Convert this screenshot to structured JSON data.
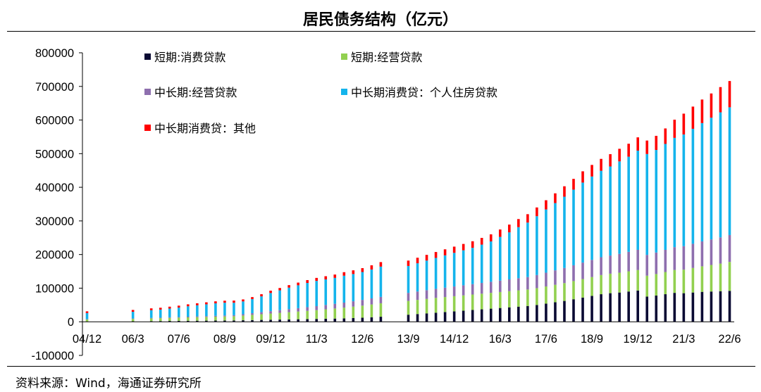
{
  "title": "居民债务结构（亿元）",
  "source": "资料来源：Wind，海通证券研究所",
  "colors": {
    "short_consumer": "#0a0a33",
    "short_business": "#92d050",
    "mid_business": "#8e6fae",
    "mid_housing": "#14b4ec",
    "mid_other": "#ff0000"
  },
  "chart_data": {
    "type": "bar",
    "stacked": true,
    "title": "居民债务结构（亿元）",
    "xlabel": "",
    "ylabel": "",
    "ylim": [
      -100000,
      800000
    ],
    "yticks": [
      -100000,
      0,
      100000,
      200000,
      300000,
      400000,
      500000,
      600000,
      700000,
      800000
    ],
    "ytick_labels": [
      "-100000",
      "0",
      "100000",
      "200000",
      "300000",
      "400000",
      "500000",
      "600000",
      "700000",
      "800000"
    ],
    "xtick_labels": [
      "04/12",
      "06/3",
      "07/6",
      "08/9",
      "09/12",
      "11/3",
      "12/6",
      "13/9",
      "14/12",
      "16/3",
      "17/6",
      "18/9",
      "19/12",
      "21/3",
      "22/6"
    ],
    "legend_position": "top-left",
    "categories": [
      "04/12",
      "05/3",
      "05/6",
      "05/9",
      "05/12",
      "06/3",
      "06/6",
      "06/9",
      "06/12",
      "07/3",
      "07/6",
      "07/9",
      "07/12",
      "08/3",
      "08/6",
      "08/9",
      "08/12",
      "09/3",
      "09/6",
      "09/9",
      "09/12",
      "10/3",
      "10/6",
      "10/9",
      "10/12",
      "11/3",
      "11/6",
      "11/9",
      "11/12",
      "12/3",
      "12/6",
      "12/9",
      "12/12",
      "13/3",
      "13/6",
      "13/9",
      "13/12",
      "14/3",
      "14/6",
      "14/9",
      "14/12",
      "15/3",
      "15/6",
      "15/9",
      "15/12",
      "16/3",
      "16/6",
      "16/9",
      "16/12",
      "17/3",
      "17/6",
      "17/9",
      "17/12",
      "18/3",
      "18/6",
      "18/9",
      "18/12",
      "19/3",
      "19/6",
      "19/9",
      "19/12",
      "20/3",
      "20/6",
      "20/9",
      "20/12",
      "21/3",
      "21/6",
      "21/9",
      "21/12",
      "22/3",
      "22/6"
    ],
    "series": [
      {
        "name": "短期:消费贷款",
        "color_key": "short_consumer",
        "values": [
          1000,
          null,
          null,
          null,
          null,
          1500,
          null,
          2000,
          2200,
          2500,
          2800,
          3000,
          3200,
          3400,
          3600,
          3800,
          4000,
          4500,
          5000,
          5500,
          6000,
          6500,
          7000,
          7500,
          8000,
          8500,
          9000,
          9500,
          10000,
          11000,
          12000,
          13500,
          15000,
          null,
          null,
          21000,
          23000,
          25000,
          27000,
          29000,
          31000,
          33000,
          35000,
          37000,
          39000,
          41000,
          43000,
          45000,
          47000,
          50000,
          54000,
          58000,
          62000,
          67000,
          72000,
          77000,
          82000,
          85000,
          87000,
          90000,
          93000,
          75000,
          78000,
          82000,
          86000,
          85000,
          87000,
          89000,
          90000,
          91000,
          92000
        ]
      },
      {
        "name": "短期:经营贷款",
        "color_key": "short_business",
        "values": [
          6000,
          null,
          null,
          null,
          null,
          7000,
          null,
          8000,
          8500,
          9000,
          9500,
          10000,
          10500,
          11000,
          11500,
          12000,
          12500,
          14000,
          15500,
          17000,
          18500,
          20000,
          21500,
          23000,
          24500,
          26000,
          28000,
          30000,
          32000,
          34000,
          36000,
          38000,
          40000,
          null,
          null,
          41000,
          42000,
          43000,
          44000,
          44500,
          45000,
          45500,
          46000,
          46500,
          47000,
          47500,
          48000,
          48500,
          49000,
          50000,
          51000,
          52000,
          53000,
          54000,
          55000,
          56000,
          57000,
          58000,
          59000,
          60000,
          61000,
          62000,
          64000,
          66000,
          68000,
          70000,
          73000,
          76000,
          79000,
          82000,
          86000
        ]
      },
      {
        "name": "中长期:经营贷款",
        "color_key": "mid_business",
        "values": [
          1000,
          null,
          null,
          null,
          null,
          1200,
          null,
          1400,
          1500,
          1700,
          1900,
          2100,
          2300,
          2500,
          2700,
          2900,
          3100,
          4000,
          5000,
          6000,
          7000,
          8000,
          9000,
          10000,
          11000,
          12000,
          13000,
          14000,
          15000,
          16000,
          17000,
          18000,
          19000,
          null,
          null,
          24000,
          25000,
          26000,
          27000,
          28000,
          29000,
          30000,
          31000,
          32000,
          33000,
          34000,
          35000,
          36000,
          37000,
          39000,
          41000,
          43000,
          45000,
          47000,
          49000,
          51000,
          53000,
          54000,
          56000,
          58000,
          60000,
          62000,
          64000,
          66000,
          68000,
          70000,
          72000,
          74000,
          76000,
          78000,
          80000
        ]
      },
      {
        "name": "中长期消费贷：个人住房贷款",
        "color_key": "mid_housing",
        "values": [
          18000,
          null,
          null,
          null,
          null,
          20000,
          null,
          23000,
          24000,
          26000,
          28000,
          31000,
          33000,
          35000,
          37000,
          38000,
          37000,
          38000,
          42000,
          47000,
          54000,
          59000,
          64000,
          68000,
          72000,
          75000,
          76000,
          77000,
          80000,
          81000,
          83000,
          86000,
          90000,
          null,
          null,
          80000,
          84000,
          88000,
          92000,
          96000,
          100000,
          104000,
          108000,
          114000,
          120000,
          130000,
          140000,
          152000,
          162000,
          175000,
          188000,
          200000,
          212000,
          225000,
          238000,
          248000,
          257000,
          265000,
          275000,
          283000,
          295000,
          300000,
          305000,
          315000,
          325000,
          332000,
          342000,
          352000,
          362000,
          372000,
          380000
        ]
      },
      {
        "name": "中长期消费贷：其他",
        "color_key": "mid_other",
        "values": [
          5000,
          null,
          null,
          null,
          null,
          5500,
          null,
          5500,
          5600,
          5700,
          5800,
          5800,
          6000,
          6000,
          6000,
          6000,
          6500,
          6000,
          6000,
          6500,
          7000,
          7000,
          7500,
          8000,
          8500,
          9000,
          9500,
          10000,
          10500,
          11000,
          11500,
          12500,
          13500,
          null,
          null,
          16000,
          16500,
          17000,
          17500,
          18000,
          18500,
          19000,
          19500,
          20000,
          21000,
          22000,
          23000,
          24000,
          25000,
          26000,
          27500,
          29000,
          31000,
          32000,
          33500,
          34500,
          35500,
          36500,
          37500,
          38500,
          39500,
          40000,
          42000,
          46000,
          54000,
          62000,
          66000,
          70000,
          72000,
          75000,
          78000
        ]
      }
    ]
  }
}
